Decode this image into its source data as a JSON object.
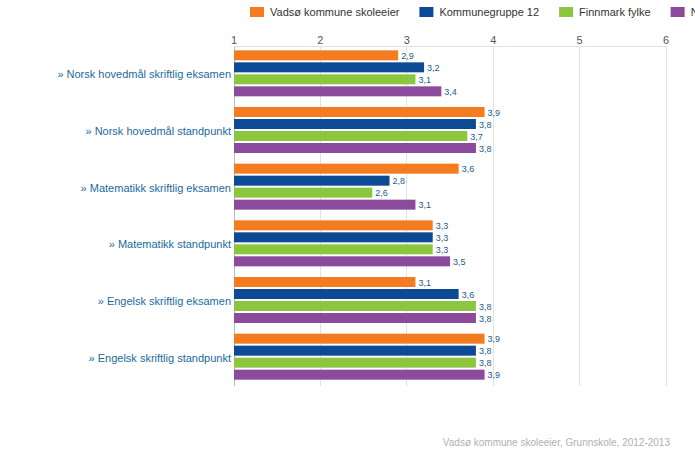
{
  "chart_data": {
    "type": "bar",
    "orientation": "horizontal",
    "categories": [
      "» Norsk hovedmål skriftlig eksamen",
      "» Norsk hovedmål standpunkt",
      "» Matematikk skriftlig eksamen",
      "» Matematikk standpunkt",
      "» Engelsk skriftlig eksamen",
      "» Engelsk skriftlig standpunkt"
    ],
    "series": [
      {
        "name": "Vadsø kommune skoleeier",
        "color": "#f47b20",
        "values": [
          2.9,
          3.9,
          3.6,
          3.3,
          3.1,
          3.9
        ],
        "value_labels": [
          "2,9",
          "3,9",
          "3,6",
          "3,3",
          "3,1",
          "3,9"
        ]
      },
      {
        "name": "Kommunegruppe 12",
        "color": "#0d4a96",
        "values": [
          3.2,
          3.8,
          2.8,
          3.3,
          3.6,
          3.8
        ],
        "value_labels": [
          "3,2",
          "3,8",
          "2,8",
          "3,3",
          "3,6",
          "3,8"
        ]
      },
      {
        "name": "Finnmark fylke",
        "color": "#8cc63f",
        "values": [
          3.1,
          3.7,
          2.6,
          3.3,
          3.8,
          3.8
        ],
        "value_labels": [
          "3,1",
          "3,7",
          "2,6",
          "3,3",
          "3,8",
          "3,8"
        ]
      },
      {
        "name": "Nasjonalt",
        "color": "#8b4a9c",
        "values": [
          3.4,
          3.8,
          3.1,
          3.5,
          3.8,
          3.9
        ],
        "value_labels": [
          "3,4",
          "3,8",
          "3,1",
          "3,5",
          "3,8",
          "3,9"
        ]
      }
    ],
    "xlim": [
      1,
      6
    ],
    "xticks": [
      1,
      2,
      3,
      4,
      5,
      6
    ],
    "grid": true,
    "legend": "top",
    "data_labels": true,
    "annotations": [
      "Vadsø kommune skoleeier, Grunnskole, 2012-2013"
    ]
  }
}
